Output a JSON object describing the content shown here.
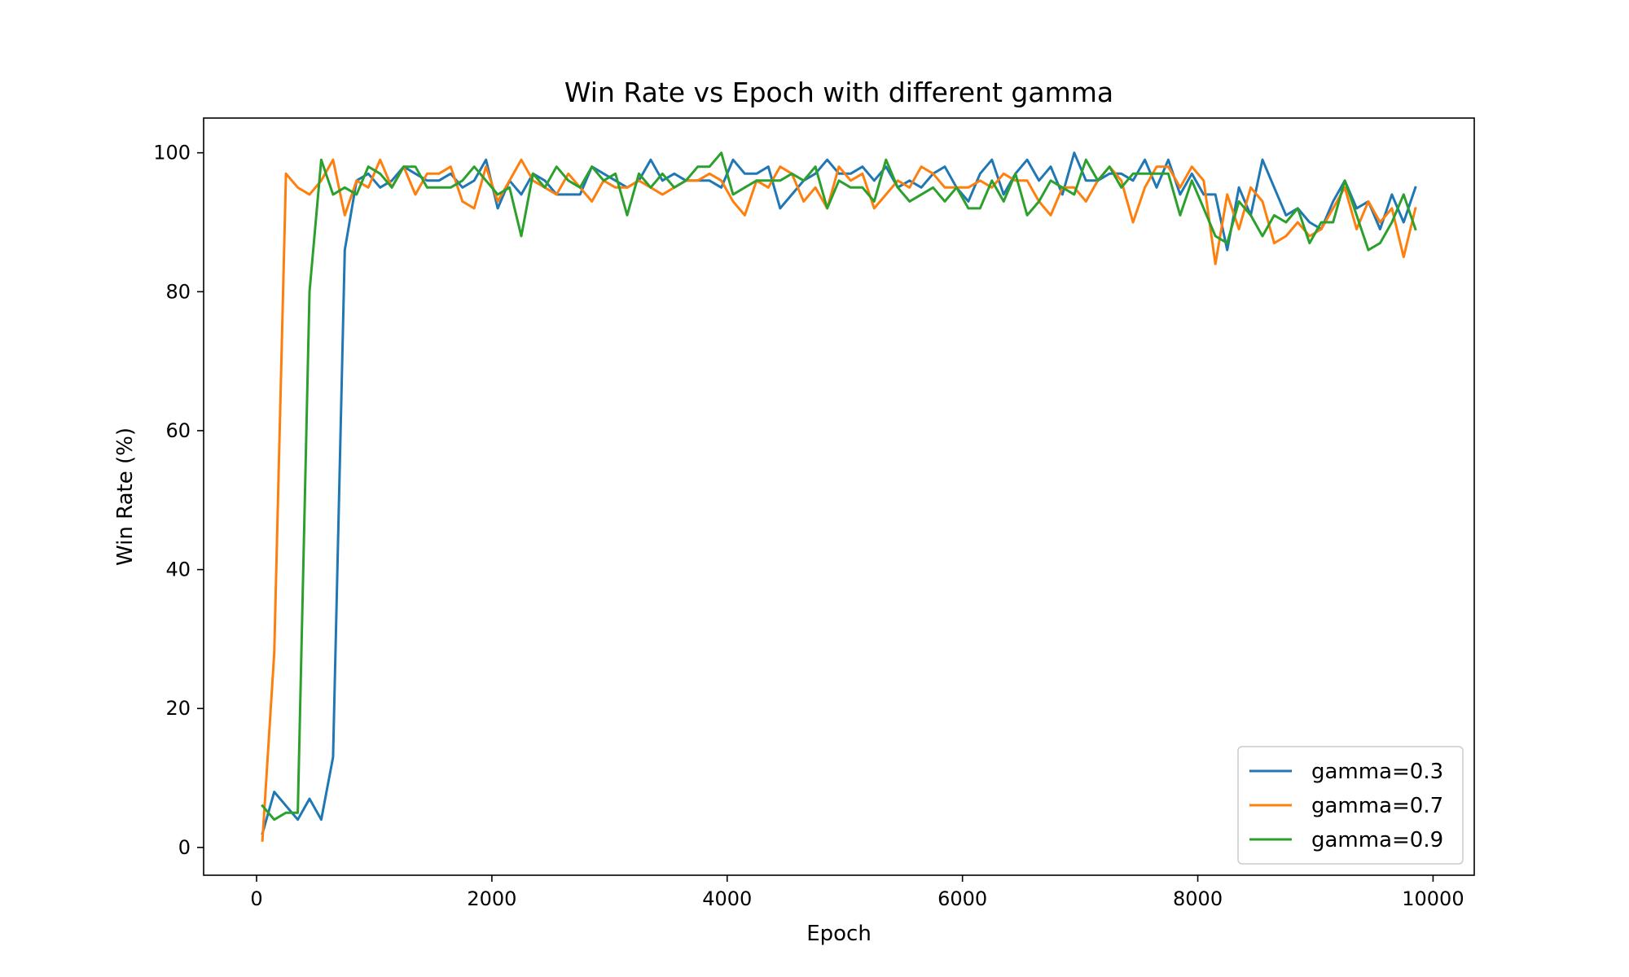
{
  "chart_data": {
    "type": "line",
    "title": "Win Rate vs Epoch with different gamma",
    "xlabel": "Epoch",
    "ylabel": "Win Rate (%)",
    "xlim": [
      -450,
      10350
    ],
    "ylim": [
      -4,
      105
    ],
    "x_ticks": [
      0,
      2000,
      4000,
      6000,
      8000,
      10000
    ],
    "y_ticks": [
      0,
      20,
      40,
      60,
      80,
      100
    ],
    "grid": false,
    "legend_position": "lower-right",
    "series": [
      {
        "name": "gamma=0.3",
        "color": "#1f77b4",
        "points": [
          [
            50,
            2
          ],
          [
            150,
            8
          ],
          [
            250,
            6
          ],
          [
            350,
            4
          ],
          [
            450,
            7
          ],
          [
            550,
            4
          ],
          [
            650,
            13
          ],
          [
            750,
            86
          ],
          [
            850,
            96
          ],
          [
            950,
            97
          ],
          [
            1050,
            95
          ],
          [
            1150,
            96
          ],
          [
            1250,
            98
          ],
          [
            1350,
            97
          ],
          [
            1450,
            96
          ],
          [
            1550,
            96
          ],
          [
            1650,
            97
          ],
          [
            1750,
            95
          ],
          [
            1850,
            96
          ],
          [
            1950,
            99
          ],
          [
            2050,
            92
          ],
          [
            2150,
            96
          ],
          [
            2250,
            94
          ],
          [
            2350,
            97
          ],
          [
            2450,
            96
          ],
          [
            2550,
            94
          ],
          [
            2650,
            94
          ],
          [
            2750,
            94
          ],
          [
            2850,
            98
          ],
          [
            2950,
            97
          ],
          [
            3050,
            96
          ],
          [
            3150,
            95
          ],
          [
            3250,
            96
          ],
          [
            3350,
            99
          ],
          [
            3450,
            96
          ],
          [
            3550,
            97
          ],
          [
            3650,
            96
          ],
          [
            3750,
            96
          ],
          [
            3850,
            96
          ],
          [
            3950,
            95
          ],
          [
            4050,
            99
          ],
          [
            4150,
            97
          ],
          [
            4250,
            97
          ],
          [
            4350,
            98
          ],
          [
            4450,
            92
          ],
          [
            4550,
            94
          ],
          [
            4650,
            96
          ],
          [
            4750,
            97
          ],
          [
            4850,
            99
          ],
          [
            4950,
            97
          ],
          [
            5050,
            97
          ],
          [
            5150,
            98
          ],
          [
            5250,
            96
          ],
          [
            5350,
            98
          ],
          [
            5450,
            95
          ],
          [
            5550,
            96
          ],
          [
            5650,
            95
          ],
          [
            5750,
            97
          ],
          [
            5850,
            98
          ],
          [
            5950,
            95
          ],
          [
            6050,
            93
          ],
          [
            6150,
            97
          ],
          [
            6250,
            99
          ],
          [
            6350,
            94
          ],
          [
            6450,
            97
          ],
          [
            6550,
            99
          ],
          [
            6650,
            96
          ],
          [
            6750,
            98
          ],
          [
            6850,
            94
          ],
          [
            6950,
            100
          ],
          [
            7050,
            96
          ],
          [
            7150,
            96
          ],
          [
            7250,
            97
          ],
          [
            7350,
            97
          ],
          [
            7450,
            96
          ],
          [
            7550,
            99
          ],
          [
            7650,
            95
          ],
          [
            7750,
            99
          ],
          [
            7850,
            94
          ],
          [
            7950,
            97
          ],
          [
            8050,
            94
          ],
          [
            8150,
            94
          ],
          [
            8250,
            86
          ],
          [
            8350,
            95
          ],
          [
            8450,
            91
          ],
          [
            8550,
            99
          ],
          [
            8650,
            95
          ],
          [
            8750,
            91
          ],
          [
            8850,
            92
          ],
          [
            8950,
            90
          ],
          [
            9050,
            89
          ],
          [
            9150,
            93
          ],
          [
            9250,
            96
          ],
          [
            9350,
            92
          ],
          [
            9450,
            93
          ],
          [
            9550,
            89
          ],
          [
            9650,
            94
          ],
          [
            9750,
            90
          ],
          [
            9850,
            95
          ]
        ]
      },
      {
        "name": "gamma=0.7",
        "color": "#ff7f0e",
        "points": [
          [
            50,
            1
          ],
          [
            150,
            28
          ],
          [
            250,
            97
          ],
          [
            350,
            95
          ],
          [
            450,
            94
          ],
          [
            550,
            96
          ],
          [
            650,
            99
          ],
          [
            750,
            91
          ],
          [
            850,
            96
          ],
          [
            950,
            95
          ],
          [
            1050,
            99
          ],
          [
            1150,
            95
          ],
          [
            1250,
            98
          ],
          [
            1350,
            94
          ],
          [
            1450,
            97
          ],
          [
            1550,
            97
          ],
          [
            1650,
            98
          ],
          [
            1750,
            93
          ],
          [
            1850,
            92
          ],
          [
            1950,
            98
          ],
          [
            2050,
            93
          ],
          [
            2150,
            96
          ],
          [
            2250,
            99
          ],
          [
            2350,
            96
          ],
          [
            2450,
            95
          ],
          [
            2550,
            94
          ],
          [
            2650,
            97
          ],
          [
            2750,
            95
          ],
          [
            2850,
            93
          ],
          [
            2950,
            96
          ],
          [
            3050,
            95
          ],
          [
            3150,
            95
          ],
          [
            3250,
            96
          ],
          [
            3350,
            95
          ],
          [
            3450,
            94
          ],
          [
            3550,
            95
          ],
          [
            3650,
            96
          ],
          [
            3750,
            96
          ],
          [
            3850,
            97
          ],
          [
            3950,
            96
          ],
          [
            4050,
            93
          ],
          [
            4150,
            91
          ],
          [
            4250,
            96
          ],
          [
            4350,
            95
          ],
          [
            4450,
            98
          ],
          [
            4550,
            97
          ],
          [
            4650,
            93
          ],
          [
            4750,
            95
          ],
          [
            4850,
            92
          ],
          [
            4950,
            98
          ],
          [
            5050,
            96
          ],
          [
            5150,
            97
          ],
          [
            5250,
            92
          ],
          [
            5350,
            94
          ],
          [
            5450,
            96
          ],
          [
            5550,
            95
          ],
          [
            5650,
            98
          ],
          [
            5750,
            97
          ],
          [
            5850,
            95
          ],
          [
            5950,
            95
          ],
          [
            6050,
            95
          ],
          [
            6150,
            96
          ],
          [
            6250,
            95
          ],
          [
            6350,
            97
          ],
          [
            6450,
            96
          ],
          [
            6550,
            96
          ],
          [
            6650,
            93
          ],
          [
            6750,
            91
          ],
          [
            6850,
            95
          ],
          [
            6950,
            95
          ],
          [
            7050,
            93
          ],
          [
            7150,
            96
          ],
          [
            7250,
            98
          ],
          [
            7350,
            96
          ],
          [
            7450,
            90
          ],
          [
            7550,
            95
          ],
          [
            7650,
            98
          ],
          [
            7750,
            98
          ],
          [
            7850,
            95
          ],
          [
            7950,
            98
          ],
          [
            8050,
            96
          ],
          [
            8150,
            84
          ],
          [
            8250,
            94
          ],
          [
            8350,
            89
          ],
          [
            8450,
            95
          ],
          [
            8550,
            93
          ],
          [
            8650,
            87
          ],
          [
            8750,
            88
          ],
          [
            8850,
            90
          ],
          [
            8950,
            88
          ],
          [
            9050,
            89
          ],
          [
            9150,
            92
          ],
          [
            9250,
            95
          ],
          [
            9350,
            89
          ],
          [
            9450,
            93
          ],
          [
            9550,
            90
          ],
          [
            9650,
            92
          ],
          [
            9750,
            85
          ],
          [
            9850,
            92
          ]
        ]
      },
      {
        "name": "gamma=0.9",
        "color": "#2ca02c",
        "points": [
          [
            50,
            6
          ],
          [
            150,
            4
          ],
          [
            250,
            5
          ],
          [
            350,
            5
          ],
          [
            450,
            80
          ],
          [
            550,
            99
          ],
          [
            650,
            94
          ],
          [
            750,
            95
          ],
          [
            850,
            94
          ],
          [
            950,
            98
          ],
          [
            1050,
            97
          ],
          [
            1150,
            95
          ],
          [
            1250,
            98
          ],
          [
            1350,
            98
          ],
          [
            1450,
            95
          ],
          [
            1550,
            95
          ],
          [
            1650,
            95
          ],
          [
            1750,
            96
          ],
          [
            1850,
            98
          ],
          [
            1950,
            96
          ],
          [
            2050,
            94
          ],
          [
            2150,
            95
          ],
          [
            2250,
            88
          ],
          [
            2350,
            97
          ],
          [
            2450,
            95
          ],
          [
            2550,
            98
          ],
          [
            2650,
            96
          ],
          [
            2750,
            95
          ],
          [
            2850,
            98
          ],
          [
            2950,
            96
          ],
          [
            3050,
            97
          ],
          [
            3150,
            91
          ],
          [
            3250,
            97
          ],
          [
            3350,
            95
          ],
          [
            3450,
            97
          ],
          [
            3550,
            95
          ],
          [
            3650,
            96
          ],
          [
            3750,
            98
          ],
          [
            3850,
            98
          ],
          [
            3950,
            100
          ],
          [
            4050,
            94
          ],
          [
            4150,
            95
          ],
          [
            4250,
            96
          ],
          [
            4350,
            96
          ],
          [
            4450,
            96
          ],
          [
            4550,
            97
          ],
          [
            4650,
            96
          ],
          [
            4750,
            98
          ],
          [
            4850,
            92
          ],
          [
            4950,
            96
          ],
          [
            5050,
            95
          ],
          [
            5150,
            95
          ],
          [
            5250,
            93
          ],
          [
            5350,
            99
          ],
          [
            5450,
            95
          ],
          [
            5550,
            93
          ],
          [
            5650,
            94
          ],
          [
            5750,
            95
          ],
          [
            5850,
            93
          ],
          [
            5950,
            95
          ],
          [
            6050,
            92
          ],
          [
            6150,
            92
          ],
          [
            6250,
            96
          ],
          [
            6350,
            93
          ],
          [
            6450,
            97
          ],
          [
            6550,
            91
          ],
          [
            6650,
            93
          ],
          [
            6750,
            96
          ],
          [
            6850,
            95
          ],
          [
            6950,
            94
          ],
          [
            7050,
            99
          ],
          [
            7150,
            96
          ],
          [
            7250,
            98
          ],
          [
            7350,
            95
          ],
          [
            7450,
            97
          ],
          [
            7550,
            97
          ],
          [
            7650,
            97
          ],
          [
            7750,
            97
          ],
          [
            7850,
            91
          ],
          [
            7950,
            96
          ],
          [
            8050,
            92
          ],
          [
            8150,
            88
          ],
          [
            8250,
            87
          ],
          [
            8350,
            93
          ],
          [
            8450,
            91
          ],
          [
            8550,
            88
          ],
          [
            8650,
            91
          ],
          [
            8750,
            90
          ],
          [
            8850,
            92
          ],
          [
            8950,
            87
          ],
          [
            9050,
            90
          ],
          [
            9150,
            90
          ],
          [
            9250,
            96
          ],
          [
            9350,
            91
          ],
          [
            9450,
            86
          ],
          [
            9550,
            87
          ],
          [
            9650,
            90
          ],
          [
            9750,
            94
          ],
          [
            9850,
            89
          ]
        ]
      }
    ]
  }
}
